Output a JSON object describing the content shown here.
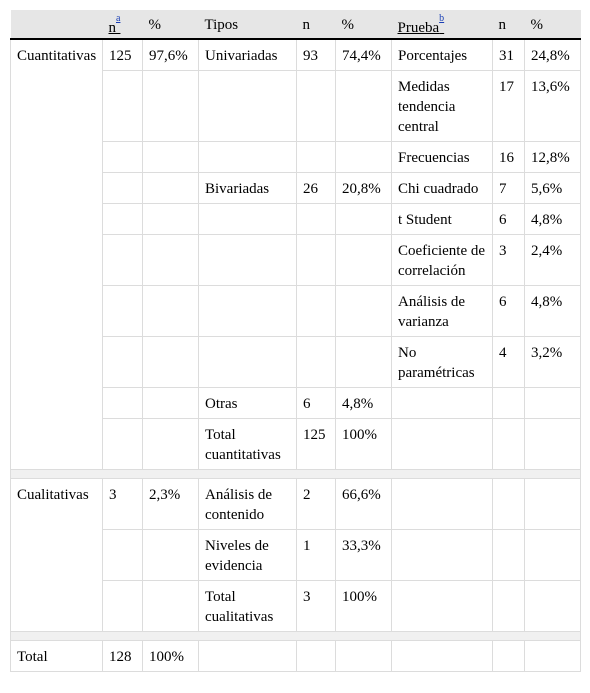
{
  "header": {
    "n1": "n",
    "note_a": "a",
    "pct1": "%",
    "tipos": "Tipos",
    "n2": "n",
    "pct2": "%",
    "prueba": "Prueba",
    "note_b": "b",
    "n3": "n",
    "pct3": "%"
  },
  "cuantitativas": {
    "label": "Cuantitativas",
    "n": "125",
    "pct": "97,6%",
    "univariadas": {
      "label": "Univariadas",
      "n": "93",
      "pct": "74,4%",
      "tests": [
        {
          "name": "Porcentajes",
          "n": "31",
          "pct": "24,8%"
        },
        {
          "name": "Medidas tendencia central",
          "n": "17",
          "pct": "13,6%"
        },
        {
          "name": "Frecuencias",
          "n": "16",
          "pct": "12,8%"
        }
      ]
    },
    "bivariadas": {
      "label": "Bivariadas",
      "n": "26",
      "pct": "20,8%",
      "tests": [
        {
          "name": "Chi cuadrado",
          "n": "7",
          "pct": "5,6%"
        },
        {
          "name": "t Student",
          "n": "6",
          "pct": "4,8%"
        },
        {
          "name": "Coeficiente de correlación",
          "n": "3",
          "pct": "2,4%"
        },
        {
          "name": "Análisis de varianza",
          "n": "6",
          "pct": "4,8%"
        },
        {
          "name": "No paramétricas",
          "n": "4",
          "pct": "3,2%"
        }
      ]
    },
    "otras": {
      "label": "Otras",
      "n": "6",
      "pct": "4,8%"
    },
    "total": {
      "label": "Total cuantitativas",
      "n": "125",
      "pct": "100%"
    }
  },
  "cualitativas": {
    "label": "Cualitativas",
    "n": "3",
    "pct": "2,3%",
    "tipos": [
      {
        "label": "Análisis de contenido",
        "n": "2",
        "pct": "66,6%"
      },
      {
        "label": "Niveles de evidencia",
        "n": "1",
        "pct": "33,3%"
      }
    ],
    "total": {
      "label": "Total cualitativas",
      "n": "3",
      "pct": "100%"
    }
  },
  "total": {
    "label": "Total",
    "n": "128",
    "pct": "100%"
  }
}
